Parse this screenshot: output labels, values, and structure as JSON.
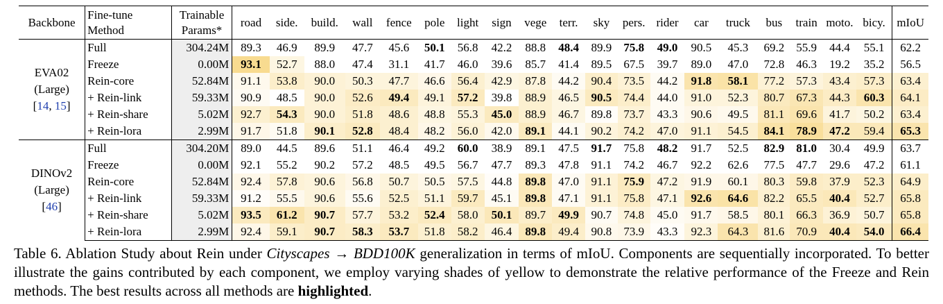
{
  "header": {
    "backbone": "Backbone",
    "method_line1": "Fine-tune",
    "method_line2": "Method",
    "params_line1": "Trainable",
    "params_line2": "Params*",
    "classes": [
      "road",
      "side.",
      "build.",
      "wall",
      "fence",
      "pole",
      "light",
      "sign",
      "vege",
      "terr.",
      "sky",
      "pers.",
      "rider",
      "car",
      "truck",
      "bus",
      "train",
      "moto.",
      "bicy."
    ],
    "miou": "mIoU"
  },
  "groups": [
    {
      "backbone_line1": "EVA02",
      "backbone_line2": "(Large)",
      "citation_open": "[",
      "citation_ref1": "14",
      "citation_sep": ", ",
      "citation_ref2": "15",
      "citation_close": "]",
      "rows": [
        {
          "method": "Full",
          "params": "304.24M",
          "values": [
            "89.3",
            "46.9",
            "89.9",
            "47.7",
            "45.6",
            "50.1",
            "56.8",
            "42.2",
            "88.8",
            "48.4",
            "89.9",
            "75.8",
            "49.0",
            "90.5",
            "45.3",
            "69.2",
            "55.9",
            "44.4",
            "55.1"
          ],
          "miou": "62.2",
          "bold": [
            5,
            9,
            11,
            12
          ],
          "shade": []
        },
        {
          "method": "Freeze",
          "params": "0.00M",
          "values": [
            "93.1",
            "52.7",
            "88.0",
            "47.4",
            "31.1",
            "41.7",
            "46.0",
            "39.6",
            "85.7",
            "41.4",
            "89.5",
            "67.5",
            "39.7",
            "89.0",
            "47.0",
            "72.8",
            "46.3",
            "19.2",
            "35.2"
          ],
          "miou": "56.5",
          "bold": [
            0
          ],
          "shade": [
            0.95,
            0.25,
            0,
            0,
            0,
            0,
            0,
            0,
            0,
            0,
            0,
            0,
            0,
            0,
            0,
            0,
            0,
            0,
            0,
            0
          ]
        },
        {
          "method": "Rein-core",
          "params": "52.84M",
          "values": [
            "91.1",
            "53.8",
            "90.0",
            "50.3",
            "47.7",
            "46.6",
            "56.4",
            "42.9",
            "87.8",
            "44.2",
            "90.4",
            "73.5",
            "44.2",
            "91.8",
            "58.1",
            "77.2",
            "57.3",
            "43.4",
            "57.3"
          ],
          "miou": "63.4",
          "bold": [
            13,
            14
          ],
          "shade": [
            0.15,
            0.45,
            0.35,
            0.3,
            0.3,
            0.2,
            0.4,
            0.25,
            0.3,
            0.1,
            0.45,
            0.35,
            0.1,
            0.7,
            0.75,
            0.35,
            0.3,
            0.4,
            0.45,
            0.4
          ]
        },
        {
          "method": "+ Rein-link",
          "params": "59.33M",
          "values": [
            "90.9",
            "48.5",
            "90.0",
            "52.6",
            "49.4",
            "49.1",
            "57.2",
            "39.8",
            "88.9",
            "46.5",
            "90.5",
            "74.4",
            "44.0",
            "91.0",
            "52.3",
            "80.7",
            "67.3",
            "44.3",
            "60.3"
          ],
          "miou": "64.1",
          "bold": [
            4,
            6,
            10,
            18
          ],
          "shade": [
            0.1,
            0,
            0.35,
            0.5,
            0.55,
            0.3,
            0.55,
            0,
            0.4,
            0.25,
            0.55,
            0.45,
            0.1,
            0.3,
            0.3,
            0.55,
            0.65,
            0.5,
            0.7,
            0.5
          ]
        },
        {
          "method": "+ Rein-share",
          "params": "5.02M",
          "values": [
            "92.7",
            "54.3",
            "90.0",
            "51.8",
            "48.6",
            "48.8",
            "55.3",
            "45.0",
            "88.9",
            "46.7",
            "89.8",
            "73.7",
            "43.3",
            "90.6",
            "49.5",
            "81.1",
            "69.6",
            "41.7",
            "50.2"
          ],
          "miou": "63.4",
          "bold": [
            1,
            7
          ],
          "shade": [
            0.4,
            0.55,
            0.35,
            0.45,
            0.4,
            0.25,
            0.3,
            0.55,
            0.4,
            0.25,
            0.05,
            0.35,
            0.1,
            0.2,
            0.15,
            0.6,
            0.7,
            0.3,
            0.25,
            0.4
          ]
        },
        {
          "method": "+ Rein-lora",
          "params": "2.99M",
          "values": [
            "91.7",
            "51.8",
            "90.1",
            "52.8",
            "48.4",
            "48.2",
            "56.0",
            "42.0",
            "89.1",
            "44.1",
            "90.2",
            "74.2",
            "47.0",
            "91.1",
            "54.5",
            "84.1",
            "78.9",
            "47.2",
            "59.4"
          ],
          "miou": "65.3",
          "bold": [
            2,
            3,
            8,
            15,
            16,
            17,
            19
          ],
          "shade": [
            0.2,
            0.1,
            0.45,
            0.55,
            0.4,
            0.2,
            0.35,
            0.15,
            0.55,
            0.1,
            0.3,
            0.4,
            0.3,
            0.35,
            0.4,
            0.75,
            0.85,
            0.6,
            0.6,
            0.7
          ]
        }
      ]
    },
    {
      "backbone_line1": "DINOv2",
      "backbone_line2": "(Large)",
      "citation_open": "[",
      "citation_ref1": "46",
      "citation_sep": "",
      "citation_ref2": "",
      "citation_close": "]",
      "rows": [
        {
          "method": "Full",
          "params": "304.20M",
          "values": [
            "89.0",
            "44.5",
            "89.6",
            "51.1",
            "46.4",
            "49.2",
            "60.0",
            "38.9",
            "89.1",
            "47.5",
            "91.7",
            "75.8",
            "48.2",
            "91.7",
            "52.5",
            "82.9",
            "81.0",
            "30.4",
            "49.9"
          ],
          "miou": "63.7",
          "bold": [
            6,
            10,
            12,
            15,
            16
          ],
          "shade": []
        },
        {
          "method": "Freeze",
          "params": "0.00M",
          "values": [
            "92.1",
            "55.2",
            "90.2",
            "57.2",
            "48.5",
            "49.5",
            "56.7",
            "47.7",
            "89.3",
            "47.8",
            "91.1",
            "74.2",
            "46.7",
            "92.2",
            "62.6",
            "77.5",
            "47.7",
            "29.6",
            "47.2"
          ],
          "miou": "61.1",
          "bold": [],
          "shade": [
            0,
            0,
            0,
            0,
            0,
            0,
            0,
            0,
            0,
            0,
            0,
            0,
            0,
            0,
            0,
            0,
            0,
            0,
            0,
            0
          ]
        },
        {
          "method": "Rein-core",
          "params": "52.84M",
          "values": [
            "92.4",
            "57.8",
            "90.6",
            "56.8",
            "50.7",
            "50.5",
            "57.5",
            "44.8",
            "89.8",
            "47.0",
            "91.1",
            "75.9",
            "47.2",
            "91.9",
            "60.1",
            "80.3",
            "59.8",
            "37.9",
            "52.3"
          ],
          "miou": "64.9",
          "bold": [
            8,
            11
          ],
          "shade": [
            0.2,
            0.35,
            0.3,
            0.2,
            0.3,
            0.2,
            0.25,
            0.05,
            0.6,
            0.1,
            0.35,
            0.55,
            0.25,
            0.2,
            0.2,
            0.35,
            0.5,
            0.45,
            0.45,
            0.45
          ]
        },
        {
          "method": "+ Rein-link",
          "params": "59.33M",
          "values": [
            "91.2",
            "55.5",
            "90.6",
            "55.6",
            "52.5",
            "51.1",
            "59.7",
            "45.1",
            "89.8",
            "47.1",
            "91.1",
            "75.8",
            "47.1",
            "92.6",
            "64.6",
            "82.2",
            "65.5",
            "40.4",
            "52.7"
          ],
          "miou": "65.8",
          "bold": [
            8,
            13,
            14,
            17
          ],
          "shade": [
            0.05,
            0.15,
            0.3,
            0.1,
            0.4,
            0.3,
            0.55,
            0.1,
            0.6,
            0.1,
            0.35,
            0.5,
            0.25,
            0.7,
            0.75,
            0.4,
            0.55,
            0.6,
            0.45,
            0.55
          ]
        },
        {
          "method": "+ Rein-share",
          "params": "5.02M",
          "values": [
            "93.5",
            "61.2",
            "90.7",
            "57.7",
            "53.2",
            "52.4",
            "58.0",
            "50.1",
            "89.7",
            "49.9",
            "90.7",
            "74.8",
            "45.0",
            "91.7",
            "58.5",
            "80.1",
            "66.3",
            "36.9",
            "50.7"
          ],
          "miou": "65.8",
          "bold": [
            0,
            1,
            2,
            5,
            7,
            9
          ],
          "shade": [
            0.55,
            0.7,
            0.5,
            0.3,
            0.45,
            0.55,
            0.4,
            0.6,
            0.45,
            0.55,
            0.1,
            0.3,
            0.1,
            0.15,
            0.2,
            0.35,
            0.55,
            0.35,
            0.3,
            0.55
          ]
        },
        {
          "method": "+ Rein-lora",
          "params": "2.99M",
          "values": [
            "92.4",
            "59.1",
            "90.7",
            "58.3",
            "53.7",
            "51.8",
            "58.2",
            "46.4",
            "89.8",
            "49.4",
            "90.8",
            "73.9",
            "43.3",
            "92.3",
            "64.3",
            "81.6",
            "70.9",
            "40.4",
            "54.0"
          ],
          "miou": "66.4",
          "bold": [
            2,
            3,
            4,
            8,
            17,
            18,
            19
          ],
          "shade": [
            0.2,
            0.45,
            0.5,
            0.45,
            0.55,
            0.4,
            0.45,
            0.25,
            0.6,
            0.45,
            0.15,
            0.2,
            0.05,
            0.3,
            0.7,
            0.4,
            0.6,
            0.6,
            0.55,
            0.7
          ]
        }
      ]
    }
  ],
  "caption": {
    "p1": "Table 6.  Ablation Study about Rein under ",
    "src": "Cityscapes",
    "arrow": " → ",
    "tgt": "BDD100K",
    "p2": " generalization in terms of mIoU. Components are sequentially incorporated. To better illustrate the gains contributed by each component, we employ varying shades of yellow to demonstrate the relative performance of the Freeze and Rein methods. The best results across all methods are ",
    "bold": "highlighted",
    "p3": "."
  },
  "colors": {
    "shade_max": "#f8d98a",
    "params_bg": "#eeeeee",
    "citation": "#1f3fae"
  }
}
